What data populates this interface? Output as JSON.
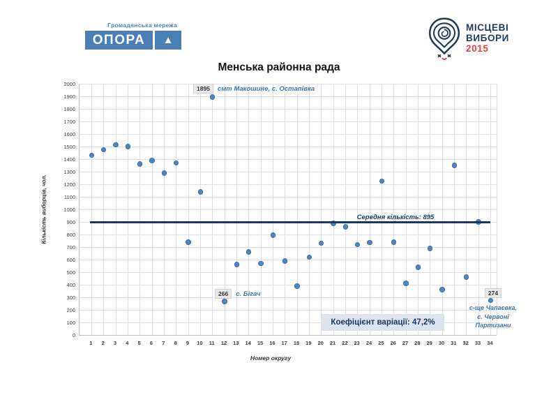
{
  "header": {
    "opora_logo": {
      "tagline": "Громадянська мережа",
      "wordmark": "ОПОРА",
      "brand_color": "#4a7fb5"
    },
    "elections_logo": {
      "line1": "МІСЦЕВІ",
      "line2": "ВИБОРИ",
      "year": "2015",
      "navy": "#1e3a5c",
      "red": "#d9453f"
    }
  },
  "chart_data": {
    "type": "scatter",
    "title": "Менська районна рада",
    "xlabel": "Номер округу",
    "ylabel": "Кількість виборців, чол.",
    "x": [
      1,
      2,
      3,
      4,
      5,
      6,
      7,
      8,
      9,
      10,
      11,
      12,
      13,
      14,
      15,
      16,
      17,
      18,
      19,
      20,
      21,
      22,
      23,
      24,
      25,
      26,
      27,
      28,
      29,
      30,
      31,
      32,
      33,
      34
    ],
    "values": [
      1430,
      1475,
      1515,
      1500,
      1360,
      1390,
      1290,
      1370,
      740,
      1140,
      1895,
      266,
      560,
      660,
      570,
      795,
      590,
      390,
      620,
      730,
      890,
      860,
      720,
      735,
      1225,
      740,
      410,
      540,
      690,
      360,
      1350,
      460,
      900,
      274
    ],
    "ylim": [
      0,
      2000
    ],
    "ytick_step": 100,
    "xlim": [
      0,
      34.5
    ],
    "grid": true,
    "legend": "none",
    "point_color": "#4e86c4",
    "mean_line": {
      "value": 895,
      "label": "Середня кількість:  895",
      "color": "#17375d"
    },
    "annotations": [
      {
        "x": 11,
        "y": 1895,
        "value_label": "1895",
        "text": "смт Макошине, с. Остапівка"
      },
      {
        "x": 12,
        "y": 266,
        "value_label": "266",
        "text": "с. Бігач"
      },
      {
        "x": 34,
        "y": 274,
        "value_label": "274",
        "text_lines": [
          "с-ще Чапаєвка,",
          "с. Червоні",
          "Партизани"
        ]
      }
    ],
    "stats_box_label": "Коефіцієнт варіації:  47,2%"
  }
}
